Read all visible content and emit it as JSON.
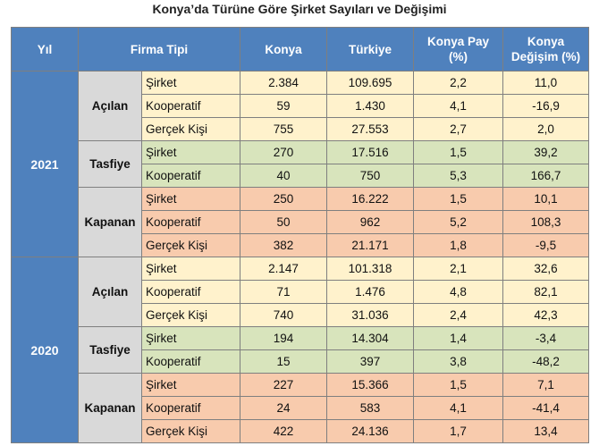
{
  "title": "Konya’da Türüne Göre Şirket Sayıları ve Değişimi",
  "table": {
    "header": [
      "Yıl",
      "Firma Tipi",
      "Konya",
      "Türkiye",
      "Konya Pay (%)",
      "Konya Değişim (%)"
    ],
    "years": [
      {
        "year": "2021",
        "groups": [
          {
            "name": "Açılan",
            "rows": [
              [
                "Şirket",
                "2.384",
                "109.695",
                "2,2",
                "11,0"
              ],
              [
                "Kooperatif",
                "59",
                "1.430",
                "4,1",
                "-16,9"
              ],
              [
                "Gerçek Kişi",
                "755",
                "27.553",
                "2,7",
                "2,0"
              ]
            ]
          },
          {
            "name": "Tasfiye",
            "rows": [
              [
                "Şirket",
                "270",
                "17.516",
                "1,5",
                "39,2"
              ],
              [
                "Kooperatif",
                "40",
                "750",
                "5,3",
                "166,7"
              ]
            ]
          },
          {
            "name": "Kapanan",
            "rows": [
              [
                "Şirket",
                "250",
                "16.222",
                "1,5",
                "10,1"
              ],
              [
                "Kooperatif",
                "50",
                "962",
                "5,2",
                "108,3"
              ],
              [
                "Gerçek Kişi",
                "382",
                "21.171",
                "1,8",
                "-9,5"
              ]
            ]
          }
        ]
      },
      {
        "year": "2020",
        "groups": [
          {
            "name": "Açılan",
            "rows": [
              [
                "Şirket",
                "2.147",
                "101.318",
                "2,1",
                "32,6"
              ],
              [
                "Kooperatif",
                "71",
                "1.476",
                "4,8",
                "82,1"
              ],
              [
                "Gerçek Kişi",
                "740",
                "31.036",
                "2,4",
                "42,3"
              ]
            ]
          },
          {
            "name": "Tasfiye",
            "rows": [
              [
                "Şirket",
                "194",
                "14.304",
                "1,4",
                "-3,4"
              ],
              [
                "Kooperatif",
                "15",
                "397",
                "3,8",
                "-48,2"
              ]
            ]
          },
          {
            "name": "Kapanan",
            "rows": [
              [
                "Şirket",
                "227",
                "15.366",
                "1,5",
                "7,1"
              ],
              [
                "Kooperatif",
                "24",
                "583",
                "4,1",
                "-41,4"
              ],
              [
                "Gerçek Kişi",
                "422",
                "24.136",
                "1,7",
                "13,4"
              ]
            ]
          }
        ]
      }
    ]
  }
}
